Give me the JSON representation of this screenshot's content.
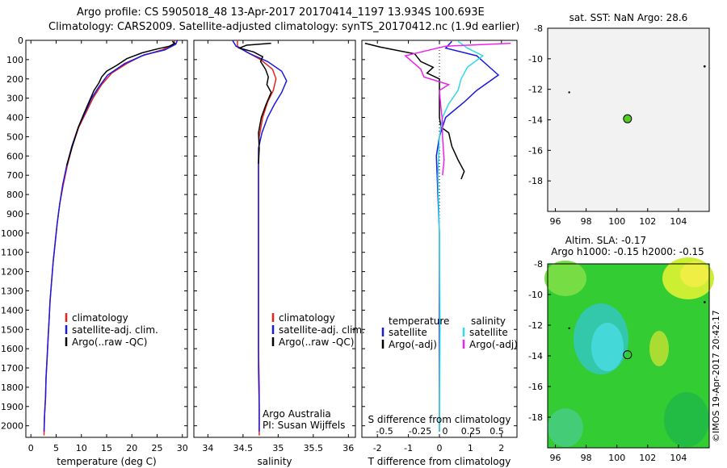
{
  "header": {
    "line1": "Argo profile: CS 5905018_48 13-Apr-2017 20170414_1197 13.934S 100.693E",
    "line2": "Climatology: CARS2009. Satellite-adjusted climatology: synTS_20170412.nc (1.9d earlier)"
  },
  "colors": {
    "climatology": "#e8211b",
    "satellite": "#1a1adf",
    "argo": "#000000",
    "cyan": "#33d8e8",
    "magenta": "#ee22ee",
    "map_bg": "#f2f2f2",
    "dot": "#55cc22"
  },
  "chart_data": [
    {
      "type": "line",
      "id": "temperature",
      "xlabel": "temperature (deg C)",
      "ylabel": "",
      "xlim": [
        -1,
        31
      ],
      "ylim": [
        2060,
        0
      ],
      "xticks": [
        0,
        5,
        10,
        15,
        20,
        25,
        30
      ],
      "yticks": [
        0,
        100,
        200,
        300,
        400,
        500,
        600,
        700,
        800,
        900,
        1000,
        1100,
        1200,
        1300,
        1400,
        1500,
        1600,
        1700,
        1800,
        1900,
        2000
      ],
      "legend": [
        "climatology",
        "satellite-adj. clim.",
        "Argo(..raw -QC)"
      ],
      "series": [
        {
          "name": "climatology",
          "points": [
            [
              28.5,
              0
            ],
            [
              28.2,
              20
            ],
            [
              26,
              50
            ],
            [
              22,
              80
            ],
            [
              19,
              120
            ],
            [
              16,
              170
            ],
            [
              14,
              230
            ],
            [
              12.3,
              300
            ],
            [
              11,
              370
            ],
            [
              9.5,
              450
            ],
            [
              8.2,
              550
            ],
            [
              7.2,
              650
            ],
            [
              6.4,
              750
            ],
            [
              5.7,
              850
            ],
            [
              5.2,
              950
            ],
            [
              4.8,
              1050
            ],
            [
              4.4,
              1150
            ],
            [
              4.1,
              1250
            ],
            [
              3.8,
              1350
            ],
            [
              3.6,
              1450
            ],
            [
              3.4,
              1550
            ],
            [
              3.2,
              1650
            ],
            [
              3,
              1750
            ],
            [
              2.9,
              1850
            ],
            [
              2.7,
              1950
            ],
            [
              2.6,
              2050
            ]
          ]
        },
        {
          "name": "satellite-adj. clim.",
          "points": [
            [
              29,
              0
            ],
            [
              28.7,
              20
            ],
            [
              26.5,
              50
            ],
            [
              22.5,
              75
            ],
            [
              18.6,
              120
            ],
            [
              15.2,
              180
            ],
            [
              13.5,
              240
            ],
            [
              12,
              300
            ],
            [
              10.8,
              370
            ],
            [
              9.4,
              450
            ],
            [
              8.1,
              550
            ],
            [
              7.1,
              650
            ],
            [
              6.3,
              750
            ],
            [
              5.7,
              850
            ],
            [
              5.2,
              950
            ],
            [
              4.8,
              1050
            ],
            [
              4.4,
              1150
            ],
            [
              4.1,
              1250
            ],
            [
              3.8,
              1350
            ],
            [
              3.6,
              1450
            ],
            [
              3.4,
              1550
            ],
            [
              3.2,
              1650
            ],
            [
              3,
              1750
            ],
            [
              2.9,
              1850
            ],
            [
              2.7,
              1950
            ],
            [
              2.6,
              2030
            ]
          ]
        },
        {
          "name": "Argo(..raw -QC)",
          "points": [
            [
              28,
              5
            ],
            [
              28.5,
              15
            ],
            [
              27.5,
              30
            ],
            [
              25,
              45
            ],
            [
              22,
              65
            ],
            [
              19,
              95
            ],
            [
              17,
              130
            ],
            [
              15,
              160
            ],
            [
              14,
              190
            ],
            [
              13.5,
              220
            ],
            [
              12.5,
              260
            ],
            [
              11.5,
              320
            ],
            [
              10.5,
              380
            ],
            [
              9.4,
              450
            ],
            [
              8.2,
              550
            ],
            [
              7.1,
              650
            ]
          ]
        }
      ]
    },
    {
      "type": "line",
      "id": "salinity",
      "xlabel": "salinity",
      "ylabel": "",
      "xlim": [
        33.8,
        36.1
      ],
      "ylim": [
        2060,
        0
      ],
      "xticks": [
        34,
        34.5,
        35,
        35.5,
        36
      ],
      "legend": [
        "climatology",
        "satellite-adj. clim.",
        "Argo(..raw -QC)"
      ],
      "annotation": [
        "Argo Australia",
        "PI: Susan Wijffels"
      ],
      "series": [
        {
          "name": "climatology",
          "points": [
            [
              34.42,
              0
            ],
            [
              34.42,
              30
            ],
            [
              34.55,
              60
            ],
            [
              34.75,
              100
            ],
            [
              34.92,
              150
            ],
            [
              34.97,
              200
            ],
            [
              34.93,
              260
            ],
            [
              34.85,
              320
            ],
            [
              34.78,
              400
            ],
            [
              34.73,
              500
            ],
            [
              34.72,
              650
            ],
            [
              34.72,
              800
            ],
            [
              34.72,
              1000
            ],
            [
              34.72,
              1200
            ],
            [
              34.72,
              1400
            ],
            [
              34.72,
              1600
            ],
            [
              34.73,
              1800
            ],
            [
              34.73,
              2050
            ]
          ]
        },
        {
          "name": "satellite-adj. clim.",
          "points": [
            [
              34.35,
              0
            ],
            [
              34.4,
              30
            ],
            [
              34.6,
              70
            ],
            [
              34.85,
              110
            ],
            [
              35.05,
              160
            ],
            [
              35.12,
              210
            ],
            [
              35.05,
              270
            ],
            [
              34.95,
              330
            ],
            [
              34.85,
              400
            ],
            [
              34.77,
              480
            ],
            [
              34.72,
              560
            ],
            [
              34.72,
              700
            ],
            [
              34.72,
              900
            ],
            [
              34.72,
              1100
            ],
            [
              34.72,
              1300
            ],
            [
              34.72,
              1500
            ],
            [
              34.72,
              1700
            ],
            [
              34.73,
              1900
            ],
            [
              34.73,
              2030
            ]
          ]
        },
        {
          "name": "Argo(..raw -QC)",
          "points": [
            [
              34.9,
              15
            ],
            [
              34.55,
              25
            ],
            [
              34.45,
              40
            ],
            [
              34.65,
              60
            ],
            [
              34.78,
              85
            ],
            [
              34.75,
              110
            ],
            [
              34.82,
              150
            ],
            [
              34.86,
              190
            ],
            [
              34.84,
              230
            ],
            [
              34.9,
              270
            ],
            [
              34.83,
              330
            ],
            [
              34.76,
              400
            ],
            [
              34.72,
              480
            ],
            [
              34.73,
              560
            ],
            [
              34.72,
              640
            ]
          ]
        }
      ]
    },
    {
      "type": "line",
      "id": "difference",
      "xlabel": "T difference from climatology",
      "xlabel2": "S difference from climatology",
      "xlim": [
        -2.5,
        2.5
      ],
      "ylim": [
        2060,
        0
      ],
      "xticks": [
        -2,
        -1,
        0,
        1,
        2
      ],
      "sticks": [
        "-0.5",
        "-0.25",
        "0",
        "0.25",
        "0.5"
      ],
      "legend_t_title": "temperature",
      "legend_s_title": "salinity",
      "legend_t": [
        "satellite",
        "Argo(-adj)"
      ],
      "legend_s": [
        "satellite",
        "Argo(-adj)"
      ],
      "series": [
        {
          "name": "T satellite",
          "points": [
            [
              0.4,
              5
            ],
            [
              0.2,
              40
            ],
            [
              1.2,
              80
            ],
            [
              1.9,
              180
            ],
            [
              1.2,
              260
            ],
            [
              0.8,
              320
            ],
            [
              0.2,
              400
            ],
            [
              0,
              500
            ],
            [
              -0.1,
              600
            ],
            [
              -0.05,
              800
            ],
            [
              0,
              1000
            ],
            [
              0,
              1500
            ],
            [
              0,
              2030
            ]
          ]
        },
        {
          "name": "T Argo(-adj)",
          "points": [
            [
              -2.4,
              15
            ],
            [
              -1.9,
              35
            ],
            [
              -0.8,
              70
            ],
            [
              -0.6,
              110
            ],
            [
              -0.2,
              140
            ],
            [
              -0.4,
              170
            ],
            [
              0,
              200
            ],
            [
              0,
              400
            ],
            [
              0.05,
              450
            ],
            [
              0.3,
              480
            ],
            [
              0.4,
              550
            ],
            [
              0.6,
              620
            ],
            [
              0.8,
              680
            ],
            [
              0.7,
              720
            ]
          ]
        },
        {
          "name": "S satellite",
          "points": [
            [
              0.6,
              5
            ],
            [
              0.9,
              40
            ],
            [
              1.4,
              80
            ],
            [
              0.9,
              140
            ],
            [
              0.7,
              200
            ],
            [
              0.6,
              260
            ],
            [
              0.3,
              330
            ],
            [
              0.1,
              400
            ],
            [
              0,
              500
            ],
            [
              -0.05,
              700
            ],
            [
              0,
              1000
            ],
            [
              0.02,
              1500
            ],
            [
              0,
              2030
            ]
          ]
        },
        {
          "name": "S Argo(-adj)",
          "points": [
            [
              2.3,
              15
            ],
            [
              0.2,
              30
            ],
            [
              -1.1,
              80
            ],
            [
              -0.6,
              150
            ],
            [
              -0.5,
              190
            ],
            [
              0.3,
              230
            ],
            [
              0,
              260
            ],
            [
              0.05,
              350
            ],
            [
              0.1,
              420
            ],
            [
              0.1,
              500
            ],
            [
              0.15,
              620
            ],
            [
              0.1,
              700
            ]
          ]
        }
      ]
    },
    {
      "type": "scatter",
      "id": "sst_map",
      "title": "sat. SST: NaN Argo: 28.6",
      "xlim": [
        95.5,
        106
      ],
      "ylim": [
        -20,
        -8
      ],
      "xticks": [
        96,
        98,
        100,
        102,
        104
      ],
      "yticks": [
        -8,
        -10,
        -12,
        -14,
        -16,
        -18
      ],
      "points": [
        {
          "x": 100.69,
          "y": -13.93
        }
      ]
    },
    {
      "type": "heatmap",
      "id": "sla_map",
      "title1": "Altim. SLA: -0.17",
      "title2": "Argo h1000: -0.15 h2000: -0.15",
      "xlim": [
        95.5,
        106
      ],
      "ylim": [
        -20,
        -8
      ],
      "xticks": [
        96,
        98,
        100,
        102,
        104
      ],
      "yticks": [
        -8,
        -10,
        -12,
        -14,
        -16,
        -18
      ],
      "points": [
        {
          "x": 100.69,
          "y": -13.93
        }
      ]
    }
  ],
  "credit": "©IMOS 19-Apr-2017 20:42:17"
}
